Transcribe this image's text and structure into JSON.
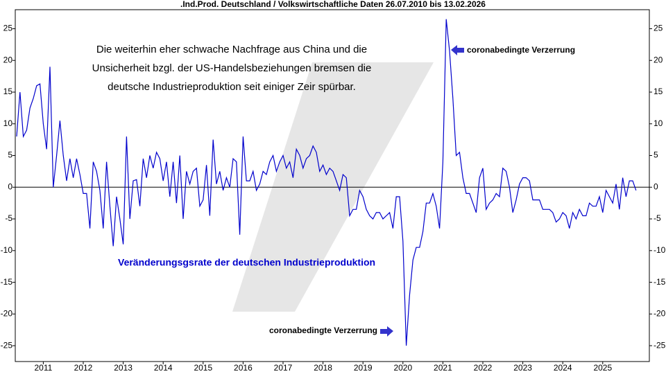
{
  "chart_data": {
    "type": "line",
    "title": ".Ind.Prod. Deutschland / Volkswirtschaftliche Daten 26.07.2010 bis 13.02.2026",
    "annotations": [
      "Die weiterhin eher schwache Nachfrage aus China und die",
      "Unsicherheit bzgl. der US-Handelsbeziehungen bremsen die",
      "deutsche Industrieproduktion seit einiger Zeir spürbar.",
      "coronabedingte Verzerrung",
      "coronabedingte Verzerrung"
    ],
    "categories": [
      null,
      null,
      null,
      null,
      null,
      null,
      null,
      null,
      "2011",
      null,
      null,
      null,
      null,
      null,
      null,
      null,
      null,
      null,
      null,
      null,
      "2012",
      null,
      null,
      null,
      null,
      null,
      null,
      null,
      null,
      null,
      null,
      null,
      "2013",
      null,
      null,
      null,
      null,
      null,
      null,
      null,
      null,
      null,
      null,
      null,
      "2014",
      null,
      null,
      null,
      null,
      null,
      null,
      null,
      null,
      null,
      null,
      null,
      "2015",
      null,
      null,
      null,
      null,
      null,
      null,
      null,
      null,
      null,
      null,
      null,
      "2016",
      null,
      null,
      null,
      null,
      null,
      null,
      null,
      null,
      null,
      null,
      null,
      "2017",
      null,
      null,
      null,
      null,
      null,
      null,
      null,
      null,
      null,
      null,
      null,
      "2018",
      null,
      null,
      null,
      null,
      null,
      null,
      null,
      null,
      null,
      null,
      null,
      "2019",
      null,
      null,
      null,
      null,
      null,
      null,
      null,
      null,
      null,
      null,
      null,
      "2020",
      null,
      null,
      null,
      null,
      null,
      null,
      null,
      null,
      null,
      null,
      null,
      "2021",
      null,
      null,
      null,
      null,
      null,
      null,
      null,
      null,
      null,
      null,
      null,
      "2022",
      null,
      null,
      null,
      null,
      null,
      null,
      null,
      null,
      null,
      null,
      null,
      "2023",
      null,
      null,
      null,
      null,
      null,
      null,
      null,
      null,
      null,
      null,
      null,
      "2024",
      null,
      null,
      null,
      null,
      null,
      null,
      null,
      null,
      null,
      null,
      null,
      "2025",
      null,
      null,
      null,
      null,
      null,
      null,
      null,
      null,
      null,
      null
    ],
    "series": [
      {
        "name": "Veränderungsgsrate der deutschen Industrieproduktion",
        "color": "#0000cc",
        "values": [
          8,
          15,
          8,
          9,
          12.5,
          14,
          16,
          16.3,
          10,
          6,
          19,
          0,
          5,
          10.5,
          5,
          1,
          4.5,
          1.5,
          4.5,
          2,
          -1,
          -1,
          -6.5,
          4,
          2.5,
          -0.5,
          -6.5,
          4,
          -3,
          -9.3,
          -1.5,
          -5,
          -9,
          8,
          -5,
          1,
          1.2,
          -3,
          4.5,
          1.5,
          5,
          3,
          5.5,
          4.5,
          1,
          4,
          -1.5,
          4,
          -2.5,
          5,
          -5,
          2.5,
          0.5,
          2.5,
          3,
          -3,
          -2,
          3.5,
          -4.5,
          7.5,
          0.5,
          2.5,
          -0.5,
          1.5,
          0,
          4.5,
          4,
          -7.5,
          8,
          1,
          1,
          2.5,
          -0.5,
          0.5,
          2.5,
          2,
          4,
          5,
          2.5,
          4,
          5,
          3,
          4,
          1.5,
          6,
          5,
          3,
          4.5,
          5,
          6.5,
          5.5,
          2.5,
          3.5,
          2,
          3,
          2.5,
          1,
          -0.5,
          2,
          1.5,
          -4.5,
          -3.5,
          -3.5,
          -0.5,
          -1.5,
          -3.5,
          -4.5,
          -5,
          -4,
          -4,
          -5,
          -4.5,
          -4,
          -6.5,
          -1.5,
          -1.5,
          -8.5,
          -25,
          -17,
          -11.5,
          -9.5,
          -9.5,
          -7,
          -2.5,
          -2.5,
          -1,
          -3,
          -6.5,
          4,
          26.5,
          21.5,
          14,
          5,
          5.5,
          1.5,
          -1,
          -1,
          -2.5,
          -4,
          1.5,
          3,
          -3.5,
          -2.5,
          -2,
          -1,
          -1.5,
          3,
          2.5,
          0,
          -4,
          -2,
          0.5,
          1.5,
          1.5,
          1,
          -2,
          -2,
          -2,
          -3.5,
          -3.5,
          -3.5,
          -4,
          -5.5,
          -5,
          -4,
          -4.5,
          -6.5,
          -4,
          -5,
          -3.5,
          -4.5,
          -4.5,
          -2.5,
          -3,
          -3,
          -1.5,
          -4,
          -0.5,
          -1.5,
          -2.5,
          0.5,
          -3.5,
          1.5,
          -1.5,
          1,
          1,
          -0.5
        ]
      }
    ],
    "ylim": [
      -27.5,
      28
    ],
    "yticks": [
      25,
      20,
      15,
      10,
      5,
      0,
      -5,
      -10,
      -15,
      -20,
      -25
    ]
  }
}
